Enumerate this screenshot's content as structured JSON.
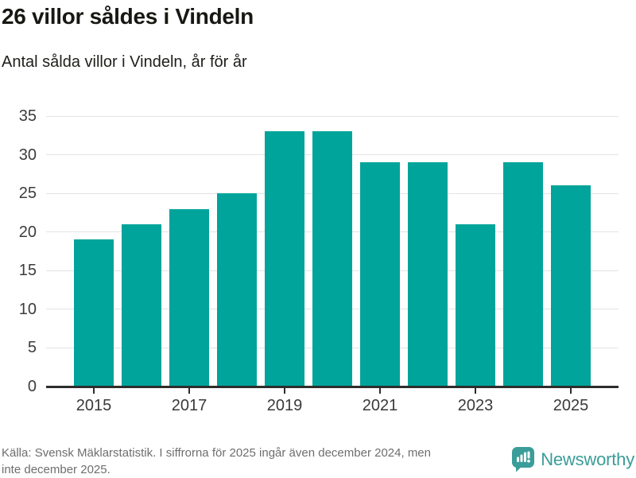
{
  "header": {
    "title": "26 villor såldes i Vindeln",
    "subtitle": "Antal sålda villor i Vindeln, år för år"
  },
  "chart_data": {
    "type": "bar",
    "title": "26 villor såldes i Vindeln",
    "subtitle": "Antal sålda villor i Vindeln, år för år",
    "categories": [
      "2015",
      "2016",
      "2017",
      "2018",
      "2019",
      "2020",
      "2021",
      "2022",
      "2023",
      "2024",
      "2025"
    ],
    "values": [
      19,
      21,
      23,
      25,
      33,
      33,
      29,
      29,
      21,
      29,
      26
    ],
    "xlabel": "",
    "ylabel": "",
    "ylim": [
      0,
      35
    ],
    "ytick_step": 5,
    "yticks": [
      0,
      5,
      10,
      15,
      20,
      25,
      30,
      35
    ],
    "xticks_shown": [
      "2015",
      "2017",
      "2019",
      "2021",
      "2023",
      "2025"
    ],
    "grid": true,
    "legend_position": "none",
    "bar_color": "#00a49b"
  },
  "footer": {
    "source_line1": "Källa: Svensk Mäklarstatistik. I siffrorna för 2025 ingår även december 2024, men",
    "source_line2": "inte december 2025.",
    "logo_text": "Newsworthy"
  },
  "colors": {
    "bar": "#00a49b",
    "logo": "#3a9d99",
    "gridline": "#e3e3e3",
    "axis": "#2d2d2d",
    "title_text": "#181813",
    "muted_text": "#6e6e6e"
  }
}
